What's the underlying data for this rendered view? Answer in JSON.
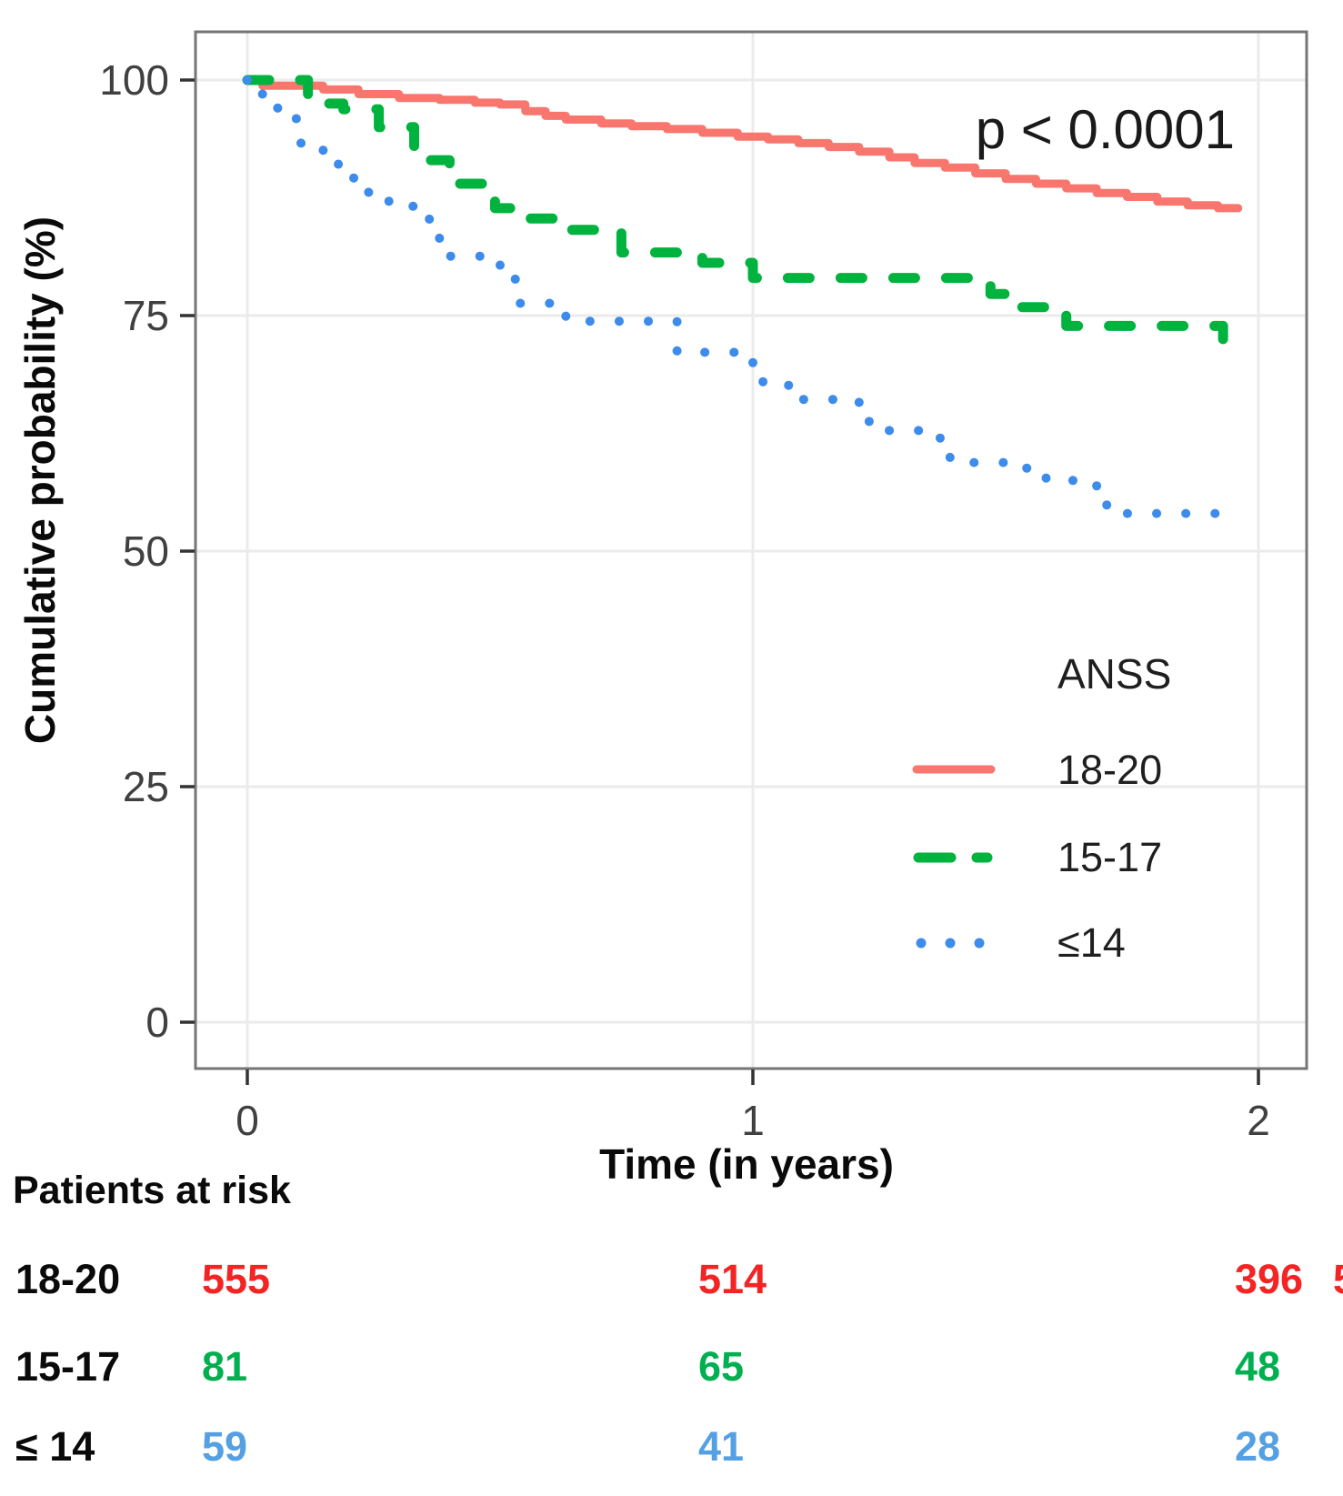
{
  "figure": {
    "annotation_p_value": "p < 0.0001",
    "y_axis": {
      "title": "Cumulative probability (%)",
      "tick_labels": [
        "100",
        "75",
        "50",
        "25",
        "0"
      ]
    },
    "x_axis": {
      "title": "Time (in years)",
      "tick_labels": [
        "0",
        "1",
        "2"
      ]
    },
    "legend": {
      "title": "ANSS",
      "items": [
        {
          "label": "18-20",
          "swatch": "solid-red-line"
        },
        {
          "label": "15-17",
          "swatch": "dashed-green-line"
        },
        {
          "label": "≤14",
          "swatch": "dotted-blue-line"
        }
      ]
    }
  },
  "chart_data": {
    "type": "line",
    "subtype": "kaplan-meier-step-curves",
    "title": "",
    "xlabel": "Time (in years)",
    "ylabel": "Cumulative probability (%)",
    "xlim": [
      0,
      2
    ],
    "ylim": [
      0,
      100
    ],
    "x_ticks": [
      0,
      1,
      2
    ],
    "y_ticks": [
      100,
      75,
      50,
      25,
      0
    ],
    "grid": true,
    "annotation": "p < 0.0001",
    "legend_title": "ANSS",
    "legend_position": "inside-right-middle",
    "series": [
      {
        "name": "18-20",
        "color": "#f8766d",
        "style": "solid",
        "end": 1.96,
        "points": [
          [
            0,
            100
          ],
          [
            0.03,
            99.4
          ],
          [
            0.15,
            99.0
          ],
          [
            0.22,
            98.5
          ],
          [
            0.3,
            98.1
          ],
          [
            0.38,
            97.9
          ],
          [
            0.45,
            97.6
          ],
          [
            0.5,
            97.4
          ],
          [
            0.55,
            96.7
          ],
          [
            0.59,
            96.2
          ],
          [
            0.63,
            95.8
          ],
          [
            0.7,
            95.4
          ],
          [
            0.76,
            95.1
          ],
          [
            0.83,
            94.8
          ],
          [
            0.9,
            94.4
          ],
          [
            0.97,
            94.0
          ],
          [
            1.03,
            93.7
          ],
          [
            1.09,
            93.3
          ],
          [
            1.15,
            92.9
          ],
          [
            1.21,
            92.4
          ],
          [
            1.27,
            91.8
          ],
          [
            1.32,
            91.2
          ],
          [
            1.38,
            90.7
          ],
          [
            1.44,
            90.1
          ],
          [
            1.5,
            89.5
          ],
          [
            1.56,
            89.0
          ],
          [
            1.62,
            88.5
          ],
          [
            1.68,
            88.0
          ],
          [
            1.74,
            87.6
          ],
          [
            1.8,
            87.1
          ],
          [
            1.86,
            86.7
          ],
          [
            1.92,
            86.4
          ]
        ]
      },
      {
        "name": "15-17",
        "color": "#00b33e",
        "style": "dashed",
        "end": 1.97,
        "points": [
          [
            0,
            100
          ],
          [
            0.12,
            97.5
          ],
          [
            0.19,
            96.9
          ],
          [
            0.26,
            95.0
          ],
          [
            0.33,
            92.8
          ],
          [
            0.36,
            91.5
          ],
          [
            0.4,
            89.0
          ],
          [
            0.49,
            86.4
          ],
          [
            0.55,
            85.3
          ],
          [
            0.62,
            84.1
          ],
          [
            0.74,
            81.7
          ],
          [
            0.9,
            80.6
          ],
          [
            1.0,
            79.0
          ],
          [
            1.47,
            77.3
          ],
          [
            1.53,
            75.9
          ],
          [
            1.62,
            73.9
          ],
          [
            1.93,
            72.1
          ]
        ]
      },
      {
        "name": "≤14",
        "color": "#3d8bea",
        "style": "dotted",
        "end": 1.93,
        "points": [
          [
            0,
            100
          ],
          [
            0.03,
            98.2
          ],
          [
            0.06,
            95.9
          ],
          [
            0.1,
            93.3
          ],
          [
            0.15,
            91.4
          ],
          [
            0.18,
            89.6
          ],
          [
            0.24,
            88.0
          ],
          [
            0.28,
            86.6
          ],
          [
            0.36,
            83.6
          ],
          [
            0.38,
            81.3
          ],
          [
            0.5,
            79.1
          ],
          [
            0.53,
            76.3
          ],
          [
            0.63,
            74.4
          ],
          [
            0.85,
            71.1
          ],
          [
            1.0,
            69.5
          ],
          [
            1.02,
            67.6
          ],
          [
            1.09,
            66.1
          ],
          [
            1.21,
            65.3
          ],
          [
            1.23,
            62.8
          ],
          [
            1.37,
            62.0
          ],
          [
            1.39,
            59.4
          ],
          [
            1.54,
            58.8
          ],
          [
            1.58,
            57.5
          ],
          [
            1.68,
            56.2
          ],
          [
            1.7,
            54.0
          ]
        ]
      }
    ]
  },
  "risk_table": {
    "header": "Patients at risk",
    "rows": [
      {
        "label": "18-20",
        "color": "#f32424",
        "values": [
          "555",
          "514",
          "396"
        ]
      },
      {
        "label": "15-17",
        "color": "#00b050",
        "values": [
          "81",
          "65",
          "48"
        ]
      },
      {
        "label": "≤ 14",
        "color": "#55a0e2",
        "values": [
          "59",
          "41",
          "28"
        ]
      }
    ],
    "clipped_fragment": "5"
  },
  "colors": {
    "curve_red": "#f8766d",
    "curve_green": "#00b33e",
    "curve_blue": "#3d8bea",
    "risk_red": "#f32424",
    "risk_green": "#00b050",
    "risk_blue": "#55a0e2",
    "gridline": "#ebebeb",
    "plot_border": "#757575",
    "tick_mark": "#333333"
  }
}
